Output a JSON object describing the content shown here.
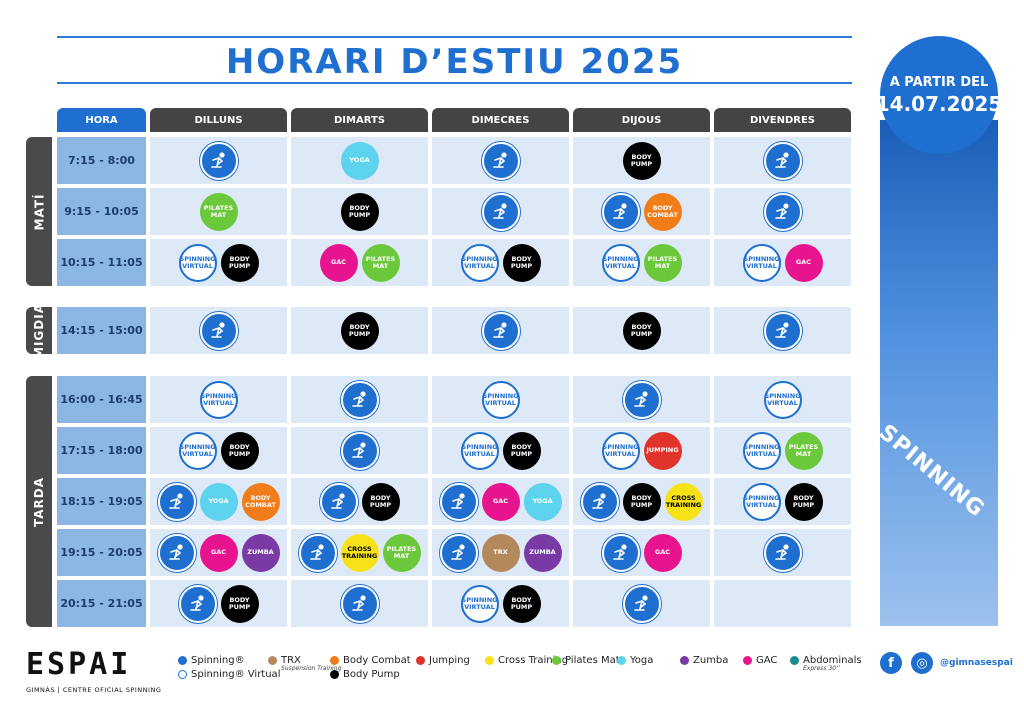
{
  "title": "HORARI D’ESTIU 2025",
  "start_badge": {
    "line1": "A PARTIR DEL",
    "date": "14.07.2025"
  },
  "side_banner_text": "SPINNING",
  "columns": [
    "HORA",
    "DILLUNS",
    "DIMARTS",
    "DIMECRES",
    "DIJOUS",
    "DIVENDRES"
  ],
  "bands": [
    "MATÍ",
    "MIGDIA",
    "TARDA"
  ],
  "class_labels": {
    "yoga": "YOGA",
    "body": "BODY\nPUMP",
    "pil": "PILATES\nMAT",
    "comb": "BODY\nCOMBAT",
    "gac": "GAC",
    "zum": "ZUMBA",
    "trx": "TRX",
    "jump": "JUMPING",
    "cross": "CROSS\nTRAINING",
    "virt": "SPINNING\nVIRTUAL"
  },
  "rows": [
    {
      "time": "7:15 - 8:00",
      "cells": [
        [
          "spin"
        ],
        [
          "yoga"
        ],
        [
          "spin"
        ],
        [
          "body"
        ],
        [
          "spin"
        ]
      ]
    },
    {
      "time": "9:15 - 10:05",
      "cells": [
        [
          "pil"
        ],
        [
          "body"
        ],
        [
          "spin"
        ],
        [
          "spin",
          "comb"
        ],
        [
          "spin"
        ]
      ]
    },
    {
      "time": "10:15 - 11:05",
      "cells": [
        [
          "virt",
          "body"
        ],
        [
          "gac",
          "pil"
        ],
        [
          "virt",
          "body"
        ],
        [
          "virt",
          "pil"
        ],
        [
          "virt",
          "gac"
        ]
      ]
    },
    {
      "time": "14:15 - 15:00",
      "cells": [
        [
          "spin"
        ],
        [
          "body"
        ],
        [
          "spin"
        ],
        [
          "body"
        ],
        [
          "spin"
        ]
      ]
    },
    {
      "time": "16:00 - 16:45",
      "cells": [
        [
          "virt"
        ],
        [
          "spin"
        ],
        [
          "virt"
        ],
        [
          "spin"
        ],
        [
          "virt"
        ]
      ]
    },
    {
      "time": "17:15 - 18:00",
      "cells": [
        [
          "virt",
          "body"
        ],
        [
          "spin"
        ],
        [
          "virt",
          "body"
        ],
        [
          "virt",
          "jump"
        ],
        [
          "virt",
          "pil"
        ]
      ]
    },
    {
      "time": "18:15 - 19:05",
      "cells": [
        [
          "spin",
          "yoga",
          "comb"
        ],
        [
          "spin",
          "body"
        ],
        [
          "spin",
          "gac",
          "yoga"
        ],
        [
          "spin",
          "body",
          "cross"
        ],
        [
          "virt",
          "body"
        ]
      ]
    },
    {
      "time": "19:15 - 20:05",
      "cells": [
        [
          "spin",
          "gac",
          "zum"
        ],
        [
          "spin",
          "cross",
          "pil"
        ],
        [
          "spin",
          "trx",
          "zum"
        ],
        [
          "spin",
          "gac"
        ],
        [
          "spin"
        ]
      ]
    },
    {
      "time": "20:15 - 21:05",
      "cells": [
        [
          "spin",
          "body"
        ],
        [
          "spin"
        ],
        [
          "virt",
          "body"
        ],
        [
          "spin"
        ],
        []
      ]
    }
  ],
  "legend": [
    {
      "key": "spin",
      "label": "Spinning",
      "sup": "®",
      "color": "#1e6fcf"
    },
    {
      "key": "virt",
      "label": "Spinning",
      "sup": "® Virtual",
      "color": "#ffffff"
    },
    {
      "key": "trx",
      "label": "TRX",
      "note": "Suspension Training",
      "color": "#b3895c"
    },
    {
      "key": "comb",
      "label": "Body Combat",
      "color": "#f07c1a"
    },
    {
      "key": "body",
      "label": "Body Pump",
      "color": "#000000"
    },
    {
      "key": "jump",
      "label": "Jumping",
      "color": "#e0342a"
    },
    {
      "key": "cross",
      "label": "Cross Training",
      "color": "#f7e217"
    },
    {
      "key": "pil",
      "label": "Pilates Mat",
      "color": "#6cc83b"
    },
    {
      "key": "yoga",
      "label": "Yoga",
      "color": "#5dd3ee"
    },
    {
      "key": "zum",
      "label": "Zumba",
      "color": "#7a3aa6"
    },
    {
      "key": "gac",
      "label": "GAC",
      "color": "#e8138e"
    },
    {
      "key": "abs",
      "label": "Abdominals",
      "note": "Express 30’’",
      "color": "#1a8c8c"
    }
  ],
  "logo": {
    "word": "ESPAI",
    "sub": "GIMNÀS | CENTRE OFICIAL SPINNING"
  },
  "social": {
    "facebook": "f",
    "instagram": "◎",
    "handle": "@gimnasespai"
  }
}
